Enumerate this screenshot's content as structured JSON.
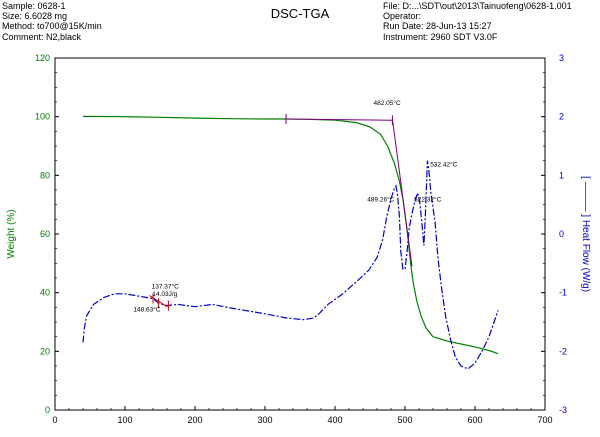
{
  "header": {
    "left": [
      "Sample: 0628-1",
      "Size:   6.6028 mg",
      "Method: to700@15K/min",
      "Comment: N2,black"
    ],
    "title": "DSC-TGA",
    "right": [
      "File: D:...\\SDT\\out\\2013\\Tainuofeng\\0628-1.001",
      "Operator:",
      "Run Date: 28-Jun-13 15:27",
      "Instrument: 2960 SDT V3.0F"
    ]
  },
  "colors": {
    "weight": "#008000",
    "heat": "#0000cc",
    "red": "#cc0000",
    "purple": "#800080"
  },
  "chart_data": {
    "type": "line",
    "xlim": [
      0,
      700
    ],
    "xticks": [
      0,
      100,
      200,
      300,
      400,
      500,
      600,
      700
    ],
    "y_left": {
      "label": "Weight (%)",
      "lim": [
        0,
        120
      ],
      "ticks": [
        0,
        20,
        40,
        60,
        80,
        100,
        120
      ]
    },
    "y_right": {
      "label": "[ ——— ] Heat Flow (W/g)",
      "lim": [
        -3,
        3
      ],
      "ticks": [
        -3,
        -2,
        -1,
        0,
        1,
        2,
        3
      ]
    },
    "grid": false,
    "series": [
      {
        "axis": "left",
        "style": "solid",
        "color": "#008000",
        "points": [
          [
            40,
            100.1
          ],
          [
            100,
            100
          ],
          [
            150,
            99.8
          ],
          [
            200,
            99.5
          ],
          [
            250,
            99.3
          ],
          [
            300,
            99.2
          ],
          [
            330,
            99.2
          ],
          [
            360,
            99.1
          ],
          [
            400,
            98.8
          ],
          [
            430,
            98
          ],
          [
            450,
            96.5
          ],
          [
            465,
            94
          ],
          [
            475,
            90
          ],
          [
            485,
            84
          ],
          [
            492,
            78
          ],
          [
            497,
            72
          ],
          [
            502,
            63
          ],
          [
            505,
            57
          ],
          [
            508,
            50
          ],
          [
            512,
            43
          ],
          [
            517,
            37
          ],
          [
            523,
            32
          ],
          [
            530,
            28
          ],
          [
            540,
            25
          ],
          [
            560,
            23.5
          ],
          [
            580,
            22.5
          ],
          [
            600,
            21.5
          ],
          [
            620,
            20.3
          ],
          [
            633,
            19.2
          ]
        ]
      },
      {
        "axis": "right",
        "style": "dash-dot",
        "color": "#0000cc",
        "points": [
          [
            40,
            -1.85
          ],
          [
            42,
            -1.6
          ],
          [
            45,
            -1.4
          ],
          [
            55,
            -1.2
          ],
          [
            70,
            -1.08
          ],
          [
            85,
            -1.02
          ],
          [
            100,
            -1.02
          ],
          [
            115,
            -1.05
          ],
          [
            130,
            -1.08
          ],
          [
            140,
            -1.1
          ],
          [
            148,
            -1.18
          ],
          [
            160,
            -1.22
          ],
          [
            175,
            -1.2
          ],
          [
            200,
            -1.24
          ],
          [
            225,
            -1.2
          ],
          [
            250,
            -1.26
          ],
          [
            300,
            -1.36
          ],
          [
            330,
            -1.43
          ],
          [
            355,
            -1.46
          ],
          [
            370,
            -1.43
          ],
          [
            378,
            -1.35
          ],
          [
            390,
            -1.2
          ],
          [
            410,
            -1.03
          ],
          [
            430,
            -0.82
          ],
          [
            448,
            -0.62
          ],
          [
            460,
            -0.4
          ],
          [
            468,
            -0.1
          ],
          [
            474,
            0.3
          ],
          [
            480,
            0.6
          ],
          [
            484,
            0.75
          ],
          [
            487,
            0.82
          ],
          [
            489,
            0.7
          ],
          [
            492,
            0.3
          ],
          [
            494,
            -0.3
          ],
          [
            497,
            -0.6
          ],
          [
            500,
            -0.6
          ],
          [
            503,
            -0.3
          ],
          [
            506,
            0.1
          ],
          [
            510,
            0.35
          ],
          [
            514,
            0.55
          ],
          [
            518,
            0.7
          ],
          [
            521,
            0.55
          ],
          [
            524,
            0.2
          ],
          [
            527,
            -0.2
          ],
          [
            529,
            0.3
          ],
          [
            532,
            1.25
          ],
          [
            534,
            1.1
          ],
          [
            537,
            0.7
          ],
          [
            540,
            0.45
          ],
          [
            543,
            0.2
          ],
          [
            547,
            -0.4
          ],
          [
            552,
            -0.9
          ],
          [
            558,
            -1.4
          ],
          [
            565,
            -1.8
          ],
          [
            572,
            -2.1
          ],
          [
            580,
            -2.25
          ],
          [
            590,
            -2.3
          ],
          [
            600,
            -2.2
          ],
          [
            610,
            -2.0
          ],
          [
            620,
            -1.75
          ],
          [
            633,
            -1.3
          ]
        ]
      }
    ],
    "markers": [
      {
        "type": "tick",
        "axis": "left",
        "x": 330,
        "y": 99.2,
        "color": "#800080"
      },
      {
        "type": "tick",
        "axis": "left",
        "x": 482,
        "y": 98.8,
        "color": "#800080"
      },
      {
        "type": "line",
        "axis": "left",
        "points": [
          [
            330,
            99.2
          ],
          [
            482,
            98.8
          ]
        ],
        "color": "#800080"
      },
      {
        "type": "line",
        "axis": "left",
        "points": [
          [
            482,
            99.2
          ],
          [
            510,
            49
          ]
        ],
        "color": "#800080"
      },
      {
        "type": "line",
        "axis": "right",
        "points": [
          [
            135,
            -1.05
          ],
          [
            160,
            -1.24
          ]
        ],
        "color": "#cc0000"
      },
      {
        "type": "tick",
        "axis": "right",
        "x": 140,
        "y": -1.1,
        "color": "#cc0000"
      },
      {
        "type": "tick",
        "axis": "right",
        "x": 148,
        "y": -1.18,
        "color": "#cc0000"
      },
      {
        "type": "tick",
        "axis": "right",
        "x": 162,
        "y": -1.22,
        "color": "#cc0000"
      }
    ],
    "annotations": [
      {
        "text": "482.05°C",
        "x": 455,
        "y": 104,
        "axis": "left"
      },
      {
        "text": "532.42°C",
        "x": 536,
        "y": 83,
        "axis": "left"
      },
      {
        "text": "489.26°C",
        "x": 446,
        "y": 71,
        "axis": "left"
      },
      {
        "text": "522.32°C",
        "x": 513,
        "y": 71,
        "axis": "left"
      },
      {
        "text": "137.37°C",
        "x": 138,
        "y": 41.5,
        "axis": "left"
      },
      {
        "text": "14.03J/g",
        "x": 139,
        "y": 38.8,
        "axis": "left"
      },
      {
        "text": "148.63°C",
        "x": 112,
        "y": 33.5,
        "axis": "left"
      }
    ]
  }
}
